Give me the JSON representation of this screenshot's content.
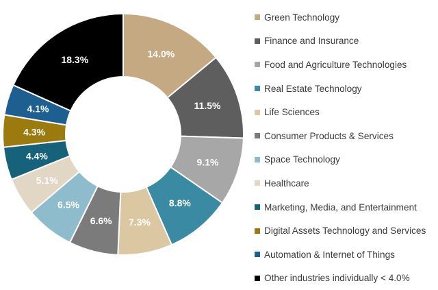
{
  "chart_data": {
    "type": "pie",
    "donut": true,
    "categories": [
      "Green Technology",
      "Finance and Insurance",
      "Food and Agriculture Technologies",
      "Real Estate Technology",
      "Life Sciences",
      "Consumer Products & Services",
      "Space Technology",
      "Healthcare",
      "Marketing, Media, and Entertainment",
      "Digital Assets Technology and Services",
      "Automation & Internet of Things",
      "Other industries individually < 4.0%"
    ],
    "values": [
      14.0,
      11.5,
      9.1,
      8.8,
      7.3,
      6.6,
      6.5,
      5.1,
      4.4,
      4.3,
      4.1,
      18.3
    ],
    "labels": [
      "14.0%",
      "11.5%",
      "9.1%",
      "8.8%",
      "7.3%",
      "6.6%",
      "6.5%",
      "5.1%",
      "4.4%",
      "4.3%",
      "4.1%",
      "18.3%"
    ],
    "colors": [
      "#c5a983",
      "#5e5e5e",
      "#a7a7a7",
      "#3b8aa4",
      "#dcc7a3",
      "#7b7b7b",
      "#8fbccd",
      "#e2d7c5",
      "#16627a",
      "#9b7a0e",
      "#1e5f91",
      "#000000"
    ],
    "legend_position": "right"
  }
}
